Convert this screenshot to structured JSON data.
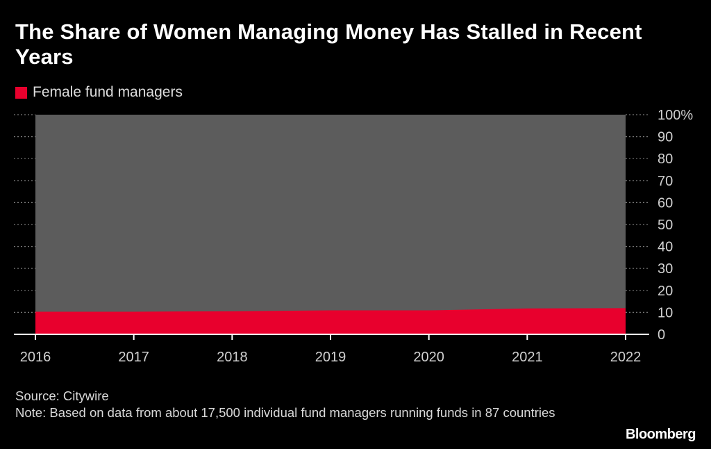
{
  "title": "The Share of Women Managing Money Has Stalled in Recent Years",
  "legend": {
    "label": "Female fund managers"
  },
  "colors": {
    "female": "#e8002d",
    "remainder": "#5c5c5c",
    "grid": "#777777",
    "background": "#000000"
  },
  "chart_data": {
    "type": "area",
    "title": "The Share of Women Managing Money Has Stalled in Recent Years",
    "x": [
      "2016",
      "2017",
      "2018",
      "2019",
      "2020",
      "2021",
      "2022"
    ],
    "series": [
      {
        "name": "Female fund managers",
        "values": [
          10.3,
          10.3,
          10.5,
          10.9,
          10.9,
          11.8,
          11.9
        ]
      }
    ],
    "ylim": [
      0,
      100
    ],
    "yticks": [
      "0",
      "10",
      "20",
      "30",
      "40",
      "50",
      "60",
      "70",
      "80",
      "90",
      "100%"
    ],
    "xlabel": "",
    "ylabel": "",
    "grid": true,
    "stacked_to_100": true,
    "legend_position": "top-left"
  },
  "footer": {
    "source": "Source: Citywire",
    "note": "Note: Based on data from about 17,500 individual fund managers running funds in 87 countries"
  },
  "brand": "Bloomberg"
}
